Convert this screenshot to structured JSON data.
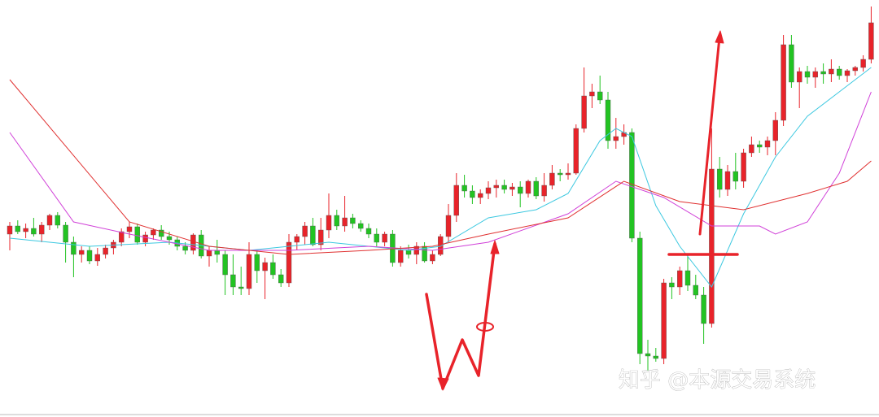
{
  "chart_data": {
    "type": "candlestick",
    "up_color": "#e8232a",
    "down_color": "#22c322",
    "ylim": [
      0,
      513
    ],
    "open": [
      225,
      235,
      228,
      232,
      225,
      236,
      248,
      236,
      215,
      200,
      205,
      192,
      200,
      208,
      215,
      228,
      234,
      215,
      224,
      230,
      222,
      218,
      210,
      205,
      224,
      198,
      205,
      200,
      175,
      160,
      158,
      200,
      180,
      190,
      175,
      165,
      215,
      222,
      235,
      212,
      230,
      248,
      235,
      245,
      238,
      232,
      225,
      215,
      225,
      190,
      205,
      200,
      210,
      192,
      200,
      222,
      248,
      285,
      278,
      270,
      275,
      282,
      285,
      280,
      283,
      275,
      290,
      272,
      285,
      300,
      298,
      300,
      355,
      395,
      400,
      390,
      340,
      345,
      350,
      220,
      78,
      75,
      72,
      165,
      160,
      180,
      162,
      150,
      115,
      305,
      280,
      302,
      290,
      325,
      335,
      332,
      340,
      365,
      458,
      412,
      425,
      418,
      425,
      422,
      428,
      420,
      426,
      430,
      440
    ],
    "high": [
      240,
      242,
      238,
      245,
      240,
      250,
      252,
      240,
      222,
      210,
      210,
      208,
      212,
      218,
      232,
      240,
      238,
      228,
      232,
      236,
      228,
      222,
      215,
      226,
      230,
      210,
      218,
      205,
      200,
      185,
      215,
      205,
      196,
      200,
      182,
      225,
      225,
      240,
      245,
      245,
      275,
      255,
      272,
      250,
      242,
      238,
      232,
      228,
      230,
      210,
      212,
      215,
      215,
      205,
      225,
      262,
      300,
      298,
      285,
      280,
      290,
      292,
      292,
      288,
      290,
      292,
      295,
      300,
      310,
      305,
      312,
      360,
      430,
      410,
      420,
      400,
      368,
      360,
      355,
      228,
      95,
      85,
      170,
      172,
      185,
      200,
      175,
      160,
      355,
      320,
      310,
      325,
      330,
      345,
      340,
      345,
      375,
      470,
      470,
      430,
      432,
      430,
      435,
      440,
      432,
      428,
      432,
      445,
      505
    ],
    "low": [
      205,
      225,
      220,
      222,
      215,
      230,
      232,
      190,
      172,
      190,
      188,
      186,
      195,
      200,
      210,
      220,
      212,
      210,
      218,
      218,
      212,
      205,
      200,
      200,
      195,
      185,
      190,
      150,
      150,
      150,
      150,
      165,
      145,
      170,
      160,
      160,
      205,
      212,
      210,
      205,
      220,
      230,
      228,
      232,
      228,
      220,
      210,
      210,
      185,
      185,
      195,
      188,
      190,
      188,
      198,
      215,
      240,
      270,
      262,
      262,
      268,
      270,
      275,
      272,
      258,
      270,
      268,
      265,
      280,
      290,
      292,
      298,
      350,
      380,
      385,
      330,
      330,
      335,
      215,
      65,
      55,
      68,
      65,
      145,
      150,
      155,
      145,
      90,
      110,
      270,
      272,
      280,
      282,
      320,
      325,
      322,
      322,
      358,
      405,
      380,
      410,
      405,
      410,
      412,
      415,
      412,
      420,
      425,
      435
    ],
    "close": [
      235,
      228,
      232,
      225,
      236,
      248,
      236,
      215,
      200,
      205,
      192,
      200,
      208,
      215,
      228,
      234,
      215,
      224,
      230,
      222,
      218,
      210,
      205,
      224,
      198,
      205,
      200,
      175,
      160,
      158,
      200,
      180,
      190,
      175,
      165,
      215,
      222,
      235,
      212,
      230,
      248,
      235,
      245,
      238,
      232,
      225,
      215,
      225,
      190,
      205,
      200,
      210,
      192,
      200,
      222,
      248,
      285,
      278,
      270,
      275,
      282,
      285,
      280,
      283,
      275,
      290,
      272,
      285,
      300,
      298,
      300,
      355,
      395,
      400,
      390,
      340,
      345,
      350,
      220,
      78,
      75,
      72,
      165,
      160,
      180,
      162,
      150,
      115,
      305,
      280,
      302,
      290,
      325,
      335,
      332,
      340,
      365,
      458,
      412,
      425,
      418,
      425,
      422,
      428,
      420,
      426,
      430,
      440,
      485
    ],
    "lines": [
      {
        "color": "#3cc8e0",
        "x": [
          0,
          10,
          20,
          30,
          40,
          50,
          54,
          60,
          66,
          70,
          74,
          76,
          78,
          81,
          84,
          88,
          92,
          96,
          100,
          104,
          108
        ],
        "values": [
          220,
          210,
          215,
          205,
          215,
          205,
          210,
          245,
          255,
          275,
          340,
          355,
          345,
          260,
          210,
          160,
          250,
          320,
          370,
          400,
          430
        ]
      },
      {
        "color": "#d040d8",
        "x": [
          0,
          8,
          15,
          25,
          35,
          45,
          53,
          60,
          70,
          76,
          82,
          88,
          94,
          96,
          100,
          104,
          108
        ],
        "values": [
          350,
          240,
          225,
          205,
          205,
          210,
          205,
          215,
          250,
          290,
          270,
          235,
          235,
          225,
          240,
          300,
          400
        ]
      },
      {
        "color": "#e03030",
        "x": [
          0,
          15,
          25,
          35,
          45,
          53,
          60,
          70,
          77,
          84,
          92,
          100,
          105,
          108
        ],
        "values": [
          415,
          240,
          210,
          200,
          205,
          210,
          225,
          245,
          290,
          265,
          255,
          275,
          290,
          315
        ]
      }
    ],
    "watermark": "知乎 @本源交易系统"
  }
}
